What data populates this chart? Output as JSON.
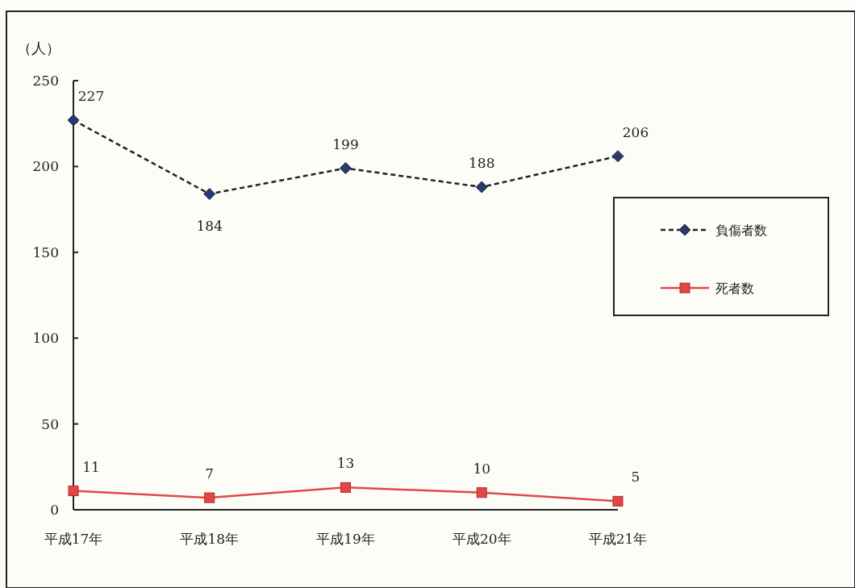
{
  "chart_data": {
    "type": "line",
    "ylabel": "（人）",
    "categories": [
      "平成17年",
      "平成18年",
      "平成19年",
      "平成20年",
      "平成21年"
    ],
    "series": [
      {
        "name": "負傷者数",
        "color": "#2b3a6e",
        "values": [
          227,
          184,
          199,
          188,
          206
        ],
        "marker": "diamond",
        "line_style": "dashed"
      },
      {
        "name": "死者数",
        "color": "#e04848",
        "values": [
          11,
          7,
          13,
          10,
          5
        ],
        "marker": "square",
        "line_style": "solid"
      }
    ],
    "ylim": [
      0,
      250
    ],
    "yticks": [
      0,
      50,
      100,
      150,
      200,
      250
    ],
    "data_labels": true,
    "legend": "right",
    "grid": false
  }
}
